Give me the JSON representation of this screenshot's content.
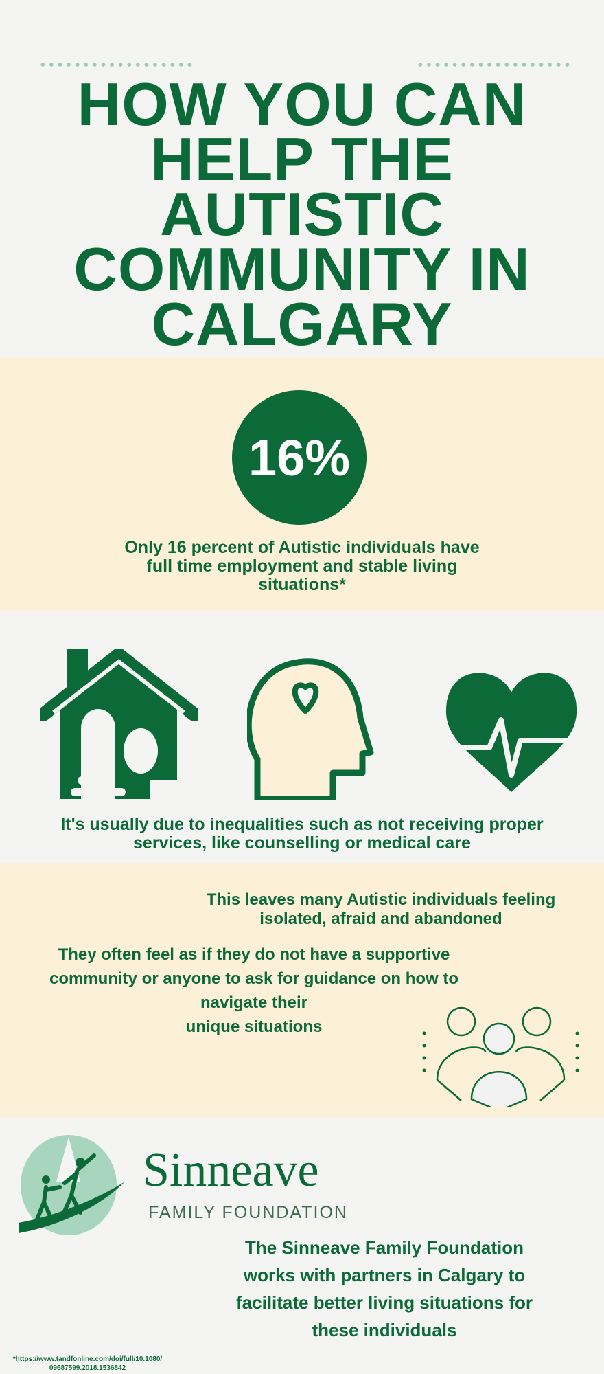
{
  "header": {
    "title_lines": [
      "HOW YOU CAN",
      "HELP THE",
      "AUTISTIC",
      "COMMUNITY IN",
      "CALGARY"
    ]
  },
  "stat": {
    "value": "16%",
    "caption_lines": [
      "Only 16 percent of Autistic individuals have",
      "full time employment and stable living",
      "situations*"
    ]
  },
  "icons": {
    "items": [
      "house-icon",
      "head-heart-icon",
      "heartbeat-icon"
    ],
    "caption_lines": [
      "It's usually due to inequalities such as not receiving proper",
      "services, like counselling or medical care"
    ]
  },
  "isolation": {
    "line1": [
      "This leaves many Autistic individuals feeling",
      "isolated, afraid and abandoned"
    ],
    "line2": [
      "They often feel as if they do not have a supportive",
      "community or anyone to ask for guidance on how to",
      "navigate their",
      "unique situations"
    ],
    "icon": "community-people-icon"
  },
  "footer": {
    "logo_name": "Sinneave",
    "logo_sub": "FAMILY FOUNDATION",
    "description_lines": [
      "The Sinneave Family Foundation",
      "works with partners in Calgary to",
      "facilitate better living situations for",
      "these individuals"
    ],
    "citation_lines": [
      "*https://www.tandfonline.com/doi/full/10.1080/",
      "09687599.2018.1536842"
    ]
  },
  "colors": {
    "green": "#0b6a37",
    "cream": "#fdf0d8",
    "background": "#f4f4f3",
    "light_green": "#9ccbb3"
  }
}
